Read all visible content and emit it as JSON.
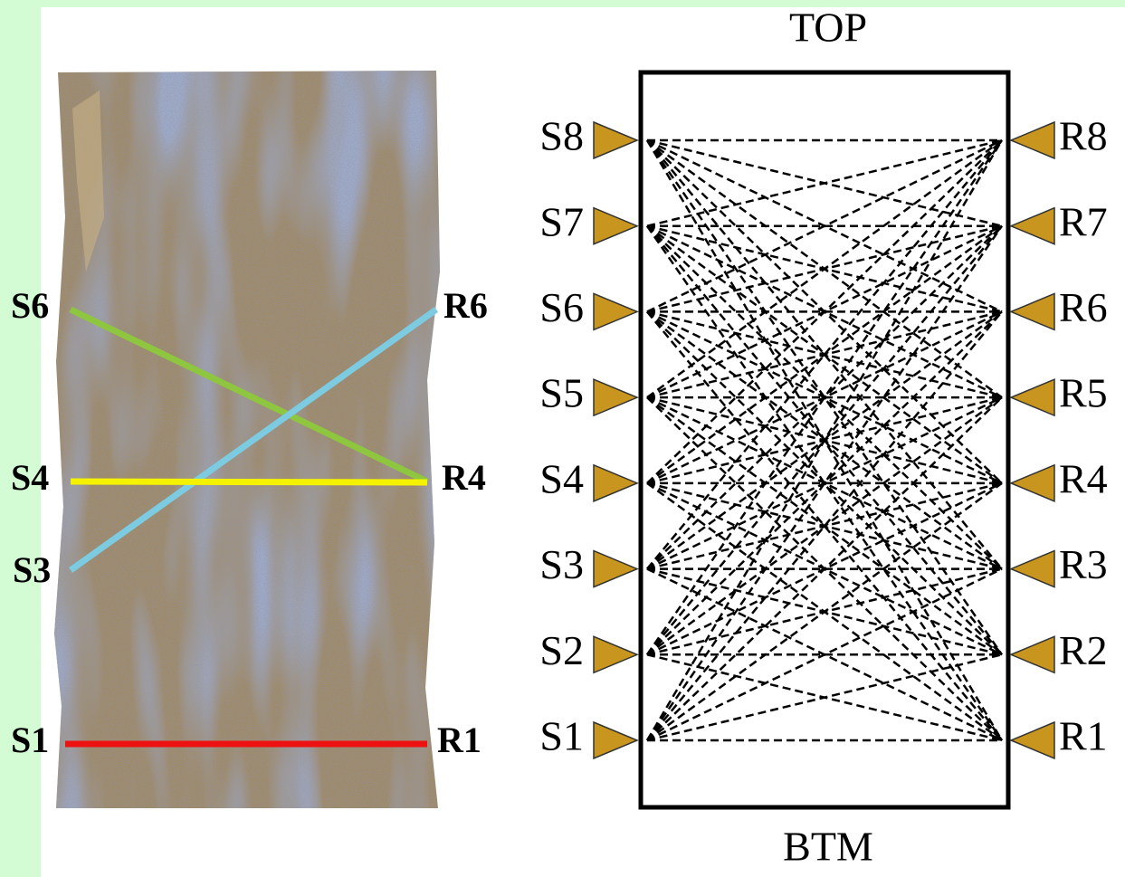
{
  "core": {
    "sources": [
      "S6",
      "S4",
      "S3",
      "S1"
    ],
    "receivers": [
      "R6",
      "R4",
      "R1"
    ]
  },
  "array": {
    "top": "TOP",
    "bottom": "BTM",
    "sources": [
      "S1",
      "S2",
      "S3",
      "S4",
      "S5",
      "S6",
      "S7",
      "S8"
    ],
    "receivers": [
      "R1",
      "R2",
      "R3",
      "R4",
      "R5",
      "R6",
      "R7",
      "R8"
    ]
  }
}
